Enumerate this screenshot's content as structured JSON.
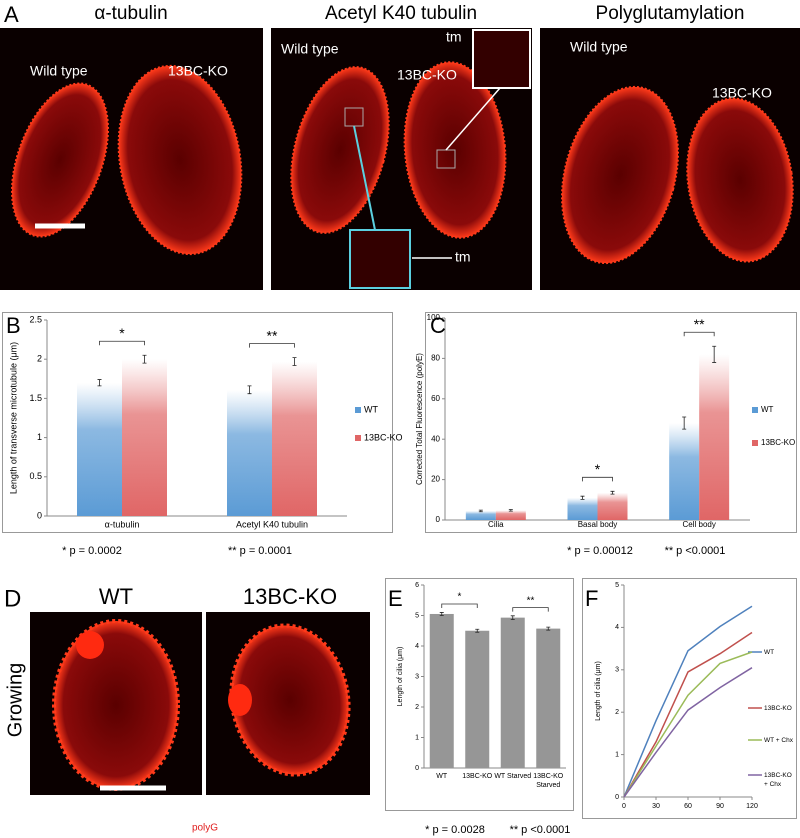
{
  "figure": {
    "panel_A": {
      "letter": "A",
      "titles": [
        "α-tubulin",
        "Acetyl K40 tubulin",
        "Polyglutamylation"
      ],
      "labels": [
        "Wild type",
        "13BC-KO",
        "Wild type",
        "13BC-KO",
        "tm",
        "tm",
        "Wild type",
        "13BC-KO"
      ]
    },
    "panel_D": {
      "letter": "D",
      "titles": [
        "WT",
        "13BC-KO"
      ],
      "side_label": "Growing",
      "stain": "polyG"
    }
  },
  "chart_data": [
    {
      "panel": "B",
      "type": "bar",
      "ylabel": "Length of transverse microtubule (μm)",
      "categories": [
        "α-tubulin",
        "Acetyl K40 tubulin"
      ],
      "series": [
        {
          "name": "WT",
          "color": "#5b9bd5",
          "values": [
            1.7,
            1.61
          ],
          "errors": [
            0.04,
            0.05
          ]
        },
        {
          "name": "13BC-KO",
          "color": "#e06666",
          "values": [
            2.0,
            1.97
          ],
          "errors": [
            0.05,
            0.05
          ]
        }
      ],
      "ylim": [
        0,
        2.5
      ],
      "yticks": [
        0,
        0.5,
        1,
        1.5,
        2,
        2.5
      ],
      "annotations": [
        "*",
        "**"
      ],
      "footnotes": [
        "* p = 0.0002",
        "** p = 0.0001"
      ]
    },
    {
      "panel": "C",
      "type": "bar",
      "ylabel": "Corrected Total Fluorescence (polyE)",
      "categories": [
        "Cilia",
        "Basal body",
        "Cell body"
      ],
      "series": [
        {
          "name": "WT",
          "color": "#5b9bd5",
          "values": [
            4.5,
            11,
            48
          ],
          "errors": [
            0.4,
            0.8,
            3
          ]
        },
        {
          "name": "13BC-KO",
          "color": "#e06666",
          "values": [
            4.8,
            13.5,
            82
          ],
          "errors": [
            0.4,
            0.7,
            4
          ]
        }
      ],
      "ylim": [
        0,
        100
      ],
      "yticks": [
        0,
        20,
        40,
        60,
        80,
        100
      ],
      "annotations": [
        "*",
        "**"
      ],
      "footnotes": [
        "* p = 0.00012",
        "** p <0.0001"
      ]
    },
    {
      "panel": "E",
      "type": "bar",
      "ylabel": "Length of cilia (μm)",
      "categories": [
        "WT",
        "13BC-KO",
        "WT Starved",
        "13BC-KO Starved"
      ],
      "values": [
        5.05,
        4.5,
        4.93,
        4.57
      ],
      "errors": [
        0.05,
        0.05,
        0.06,
        0.05
      ],
      "color": "#969696",
      "ylim": [
        0,
        6
      ],
      "yticks": [
        0,
        1,
        2,
        3,
        4,
        5,
        6
      ],
      "annotations": [
        "*",
        "**"
      ],
      "footnotes": [
        "* p = 0.0028",
        "** p <0.0001"
      ]
    },
    {
      "panel": "F",
      "type": "line",
      "ylabel": "Length of cilia (μm)",
      "x": [
        0,
        30,
        60,
        90,
        120
      ],
      "xlim": [
        0,
        120
      ],
      "xticks": [
        0,
        30,
        60,
        90,
        120
      ],
      "ylim": [
        0,
        5
      ],
      "yticks": [
        0,
        1,
        2,
        3,
        4,
        5
      ],
      "series": [
        {
          "name": "WT",
          "color": "#4f81bd",
          "values": [
            0,
            1.8,
            3.45,
            4.02,
            4.5
          ]
        },
        {
          "name": "13BC-KO",
          "color": "#c0504d",
          "values": [
            0,
            1.3,
            2.95,
            3.38,
            3.88
          ]
        },
        {
          "name": "WT + Chx",
          "color": "#9bbb59",
          "values": [
            0,
            1.2,
            2.4,
            3.15,
            3.42
          ]
        },
        {
          "name": "13BC-KO + Chx",
          "color": "#8064a2",
          "values": [
            0,
            1.05,
            2.05,
            2.58,
            3.05
          ]
        }
      ]
    }
  ]
}
